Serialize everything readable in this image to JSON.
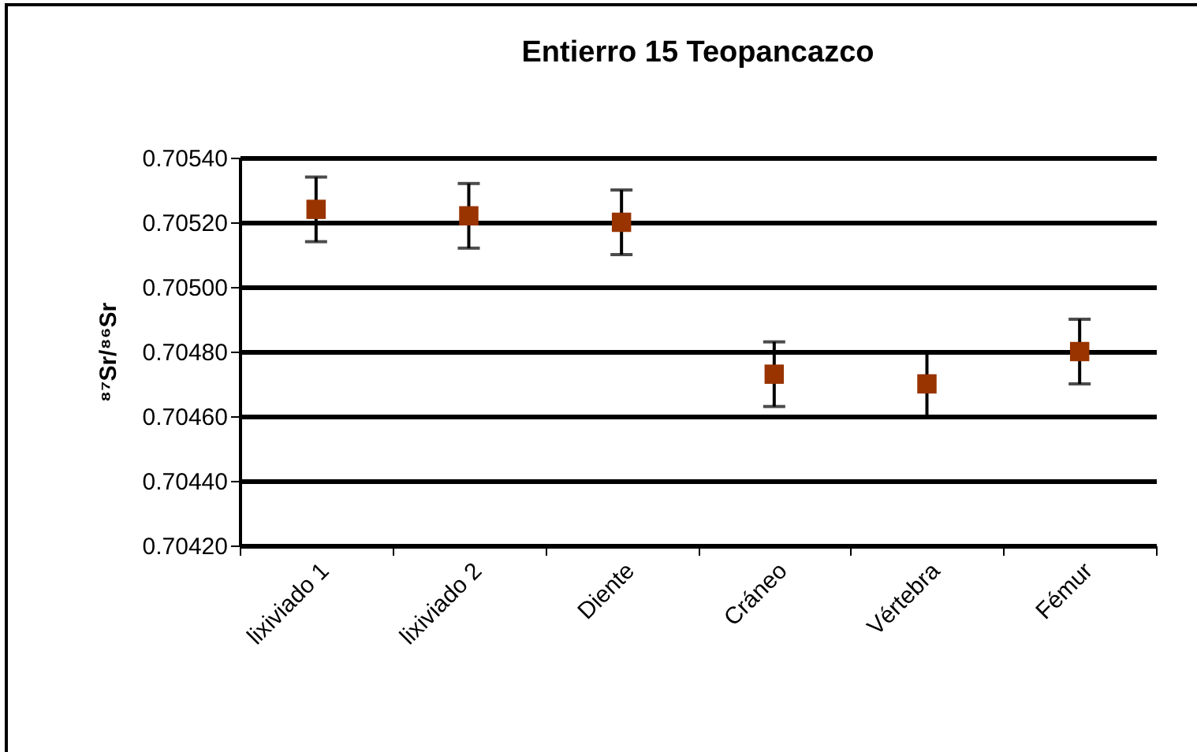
{
  "chart_data": {
    "type": "scatter",
    "title": "Entierro 15 Teopancazco",
    "ylabel": "⁸⁷Sr/⁸⁶Sr",
    "categories": [
      "lixiviado 1",
      "lixiviado 2",
      "Diente",
      "Cráneo",
      "Vértebra",
      "Fémur"
    ],
    "series": [
      {
        "color": "#993300",
        "values": [
          0.70524,
          0.70522,
          0.7052,
          0.70473,
          0.7047,
          0.7048
        ],
        "errors": [
          0.0001,
          0.0001,
          0.0001,
          0.0001,
          0.0001,
          0.0001
        ]
      }
    ],
    "ylim": [
      0.7042,
      0.7054
    ],
    "yticks": [
      {
        "value": 0.7042,
        "label": "0.70420"
      },
      {
        "value": 0.7044,
        "label": "0.70440"
      },
      {
        "value": 0.7046,
        "label": "0.70460"
      },
      {
        "value": 0.7048,
        "label": "0.70480"
      },
      {
        "value": 0.705,
        "label": "0.70500"
      },
      {
        "value": 0.7052,
        "label": "0.70520"
      },
      {
        "value": 0.7054,
        "label": "0.70540"
      }
    ],
    "grid": "y",
    "marker": "square"
  }
}
